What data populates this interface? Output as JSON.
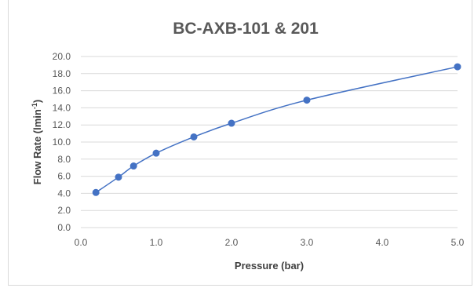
{
  "chart_data": {
    "type": "scatter",
    "title": "BC-AXB-101 & 201",
    "xlabel": "Pressure (bar)",
    "ylabel_main": "Flow Rate (lmin",
    "ylabel_sup": "-1",
    "ylabel_close": ")",
    "xlim": [
      0,
      5
    ],
    "ylim": [
      0,
      20
    ],
    "x_ticks": [
      "0.0",
      "1.0",
      "2.0",
      "3.0",
      "4.0",
      "5.0"
    ],
    "y_ticks": [
      "0.0",
      "2.0",
      "4.0",
      "6.0",
      "8.0",
      "10.0",
      "12.0",
      "14.0",
      "16.0",
      "18.0",
      "20.0"
    ],
    "grid": "horizontal",
    "legend": "none",
    "smooth_line": true,
    "series": [
      {
        "color": "#4472c4",
        "x": [
          0.2,
          0.5,
          0.7,
          1.0,
          1.5,
          2.0,
          3.0,
          5.0
        ],
        "y": [
          4.1,
          5.9,
          7.2,
          8.7,
          10.6,
          12.2,
          14.9,
          18.8
        ]
      }
    ]
  }
}
